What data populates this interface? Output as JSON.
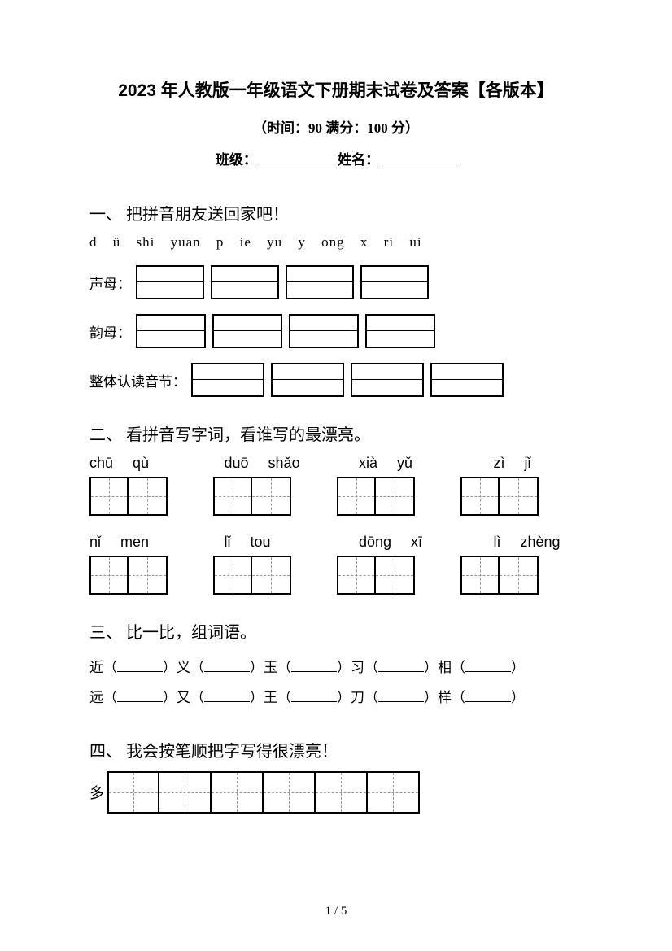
{
  "header": {
    "title": "2023 年人教版一年级语文下册期末试卷及答案【各版本】",
    "subtitle": "（时间：90   满分：100 分）",
    "class_label": "班级：",
    "name_label": "  姓名："
  },
  "section1": {
    "heading": "一、 把拼音朋友送回家吧！",
    "pinyin": [
      "d",
      "ü",
      "shi",
      "yuan",
      "p",
      "ie",
      "yu",
      "y",
      "ong",
      "x",
      "ri",
      "ui"
    ],
    "row1_label": "声母：",
    "row2_label": "韵母：",
    "row3_label": "整体认读音节：",
    "row1_boxes": 4,
    "row2_boxes": 4,
    "row3_boxes": 4
  },
  "section2": {
    "heading": "二、 看拼音写字词，看谁写的最漂亮。",
    "line1": [
      [
        "chū",
        "qù"
      ],
      [
        "duō",
        "shǎo"
      ],
      [
        "xià",
        "yǔ"
      ],
      [
        "zì",
        "jǐ"
      ]
    ],
    "line2": [
      [
        "nǐ",
        "men"
      ],
      [
        "lǐ",
        "tou"
      ],
      [
        "dōng",
        "xī"
      ],
      [
        "lì",
        "zhèng"
      ]
    ]
  },
  "section3": {
    "heading": "三、 比一比，组词语。",
    "row1": [
      "近",
      "义",
      "玉",
      "习",
      "相"
    ],
    "row2": [
      "远",
      "又",
      "王",
      "刀",
      "样"
    ]
  },
  "section4": {
    "heading": "四、 我会按笔顺把字写得很漂亮！",
    "char": "多",
    "box_count": 6
  },
  "footer": {
    "page": "1 / 5"
  }
}
